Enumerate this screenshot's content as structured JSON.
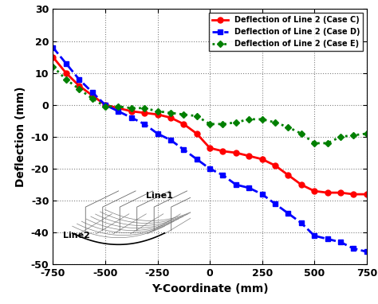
{
  "chart_data": {
    "type": "line",
    "x_label": "Y-Coordinate (mm)",
    "y_label": "Deflection (mm)",
    "x": [
      -750,
      -687.5,
      -625,
      -562.5,
      -500,
      -437.5,
      -375,
      -312.5,
      -250,
      -187.5,
      -125,
      -62.5,
      0,
      62.5,
      125,
      187.5,
      250,
      312.5,
      375,
      437.5,
      500,
      562.5,
      625,
      687.5,
      750
    ],
    "series": [
      {
        "name": "Deflection of Line 2 (Case C)",
        "color": "#ff0000",
        "marker": "circle",
        "line_style": "solid",
        "values": [
          15,
          10,
          6,
          3,
          0,
          -1,
          -2,
          -2.5,
          -3,
          -4,
          -6,
          -9,
          -13.5,
          -14.5,
          -15,
          -16,
          -17,
          -19,
          -22,
          -25,
          -27,
          -27.5,
          -27.5,
          -28,
          -28
        ]
      },
      {
        "name": "Deflection of Line 2 (Case D)",
        "color": "#0000ff",
        "marker": "square",
        "line_style": "dashed",
        "values": [
          18,
          13,
          8,
          4,
          0,
          -2,
          -4,
          -6,
          -9,
          -11,
          -14,
          -17,
          -20,
          -22,
          -25,
          -26,
          -28,
          -31,
          -34,
          -37,
          -41,
          -42,
          -43,
          -45,
          -46
        ]
      },
      {
        "name": "Deflection of Line 2 (Case E)",
        "color": "#008000",
        "marker": "diamond",
        "line_style": "dotted",
        "values": [
          12,
          8,
          5,
          2,
          -0.5,
          -0.5,
          -1,
          -1,
          -2,
          -2.5,
          -3,
          -3.5,
          -6,
          -6,
          -5.5,
          -4.5,
          -4.5,
          -5.5,
          -7,
          -9,
          -12,
          -12,
          -10,
          -9.5,
          -9
        ]
      }
    ],
    "xlim": [
      -750,
      750
    ],
    "xticks": [
      -750,
      -500,
      -250,
      0,
      250,
      500,
      750
    ],
    "ylim": [
      -50,
      30
    ],
    "yticks": [
      -50,
      -40,
      -30,
      -20,
      -10,
      0,
      10,
      20,
      30
    ],
    "grid": true,
    "legend": "upper right",
    "annotations": [
      "Line2",
      "Line1"
    ]
  }
}
